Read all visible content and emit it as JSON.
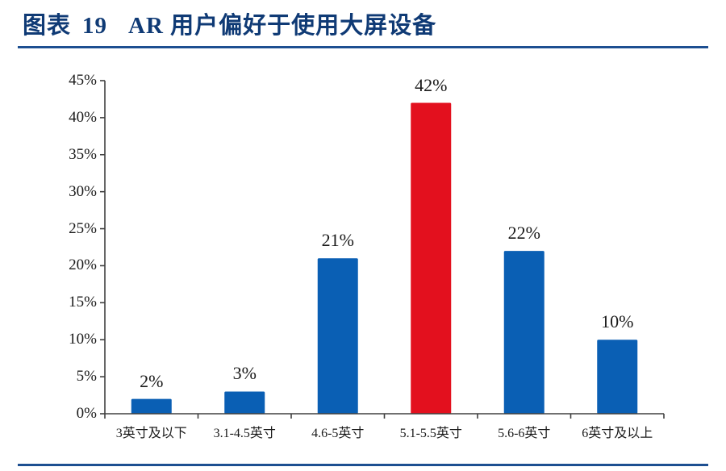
{
  "header": {
    "figure_label": "图表",
    "figure_number": "19",
    "figure_title": "AR 用户偏好于使用大屏设备"
  },
  "chart_data": {
    "type": "bar",
    "title": "图表 19 AR 用户偏好于使用大屏设备",
    "xlabel": "",
    "ylabel": "",
    "categories": [
      "3英寸及以下",
      "3.1-4.5英寸",
      "4.6-5英寸",
      "5.1-5.5英寸",
      "5.6-6英寸",
      "6英寸及以上"
    ],
    "values": [
      2,
      3,
      21,
      42,
      22,
      10
    ],
    "value_labels": [
      "2%",
      "3%",
      "21%",
      "42%",
      "22%",
      "10%"
    ],
    "unit": "%",
    "ylim": [
      0,
      45
    ],
    "yticks": [
      "0%",
      "5%",
      "10%",
      "15%",
      "20%",
      "25%",
      "30%",
      "35%",
      "40%",
      "45%"
    ],
    "grid": false,
    "legend": null,
    "colors": {
      "default_bar": "#0a5fb4",
      "highlight_bar": "#e3101e",
      "highlight_index": 3,
      "axis": "#404040",
      "rule": "#1d4f91",
      "title": "#0f3a75"
    }
  }
}
